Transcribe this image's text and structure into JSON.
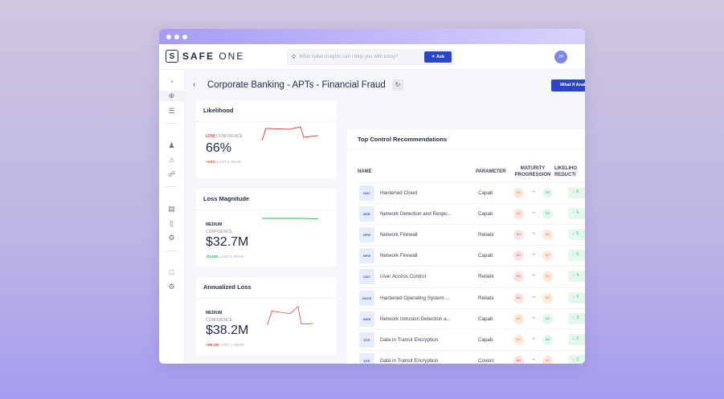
{
  "app": {
    "brand_mark": "S",
    "brand_bold": "SAFE",
    "brand_light": " ONE",
    "search_placeholder": "What cyber insights can I help you with today?",
    "ask_label": "Ask",
    "avatar_initials": "JH"
  },
  "page": {
    "title": "Corporate Banking - APTs - Financial Fraud",
    "what_if_label": "What If Analysis"
  },
  "cards": [
    {
      "title": "Likelihood",
      "confidence_level": "LOW",
      "confidence_label": "CONFIDENCE",
      "value": "66%",
      "delta": "+10%",
      "delta_period": "LAST 1 YEAR",
      "trend_color": "#e5483b"
    },
    {
      "title": "Loss Magnitude",
      "confidence_level": "MEDIUM",
      "confidence_label": "CONFIDENCE",
      "value": "$32.7M",
      "delta": "-$144K",
      "delta_period": "LAST 1 YEAR",
      "trend_color": "#22c55e"
    },
    {
      "title": "Annualized Loss",
      "confidence_level": "MEDIUM",
      "confidence_label": "CONFIDENCE",
      "value": "$38.2M",
      "delta": "+$9.1M",
      "delta_period": "LAST 1 YEAR",
      "trend_color": "#e5483b"
    }
  ],
  "recommendations": {
    "title": "Top Control Recommendations",
    "columns": {
      "name": "NAME",
      "parameter": "PARAMETER",
      "maturity1": "MATURITY",
      "maturity2": "PROGRESSION",
      "likelihood1": "LIKELIHO",
      "likelihood2": "REDUCTI"
    },
    "rows": [
      {
        "abbr": "HAC",
        "name": "Hardened Cloud",
        "parameter": "Capab",
        "from": "M2",
        "to": "M3",
        "reduction": "9."
      },
      {
        "abbr": "NDR",
        "name": "Network Detection and Respo...",
        "parameter": "Capab",
        "from": "M2",
        "to": "M3",
        "reduction": "6."
      },
      {
        "abbr": "NFW",
        "name": "Network Firewall",
        "parameter": "Reliabi",
        "from": "M1",
        "to": "M2",
        "reduction": "5."
      },
      {
        "abbr": "NFW",
        "name": "Network Firewall",
        "parameter": "Capab",
        "from": "M1",
        "to": "M2",
        "reduction": "5."
      },
      {
        "abbr": "UAC",
        "name": "User Access Control",
        "parameter": "Reliabi",
        "from": "M1",
        "to": "M2",
        "reduction": "4."
      },
      {
        "abbr": "HAOS",
        "name": "Hardened Operating System ...",
        "parameter": "Reliabi",
        "from": "M1",
        "to": "M2",
        "reduction": "3."
      },
      {
        "abbr": "NIDS",
        "name": "Network Intrusion Detection a...",
        "parameter": "Capab",
        "from": "M2",
        "to": "M3",
        "reduction": "3."
      },
      {
        "abbr": "DTE",
        "name": "Data in Transit Encryption",
        "parameter": "Capab",
        "from": "M2",
        "to": "M3",
        "reduction": "3."
      },
      {
        "abbr": "DTE",
        "name": "Data in Transit Encryption",
        "parameter": "Coverc",
        "from": "M1",
        "to": "M2",
        "reduction": "2."
      },
      {
        "abbr": "HAOS",
        "name": "Hardened Operating System ...",
        "parameter": "Capab",
        "from": "M1",
        "to": "M2",
        "reduction": "2."
      }
    ]
  }
}
